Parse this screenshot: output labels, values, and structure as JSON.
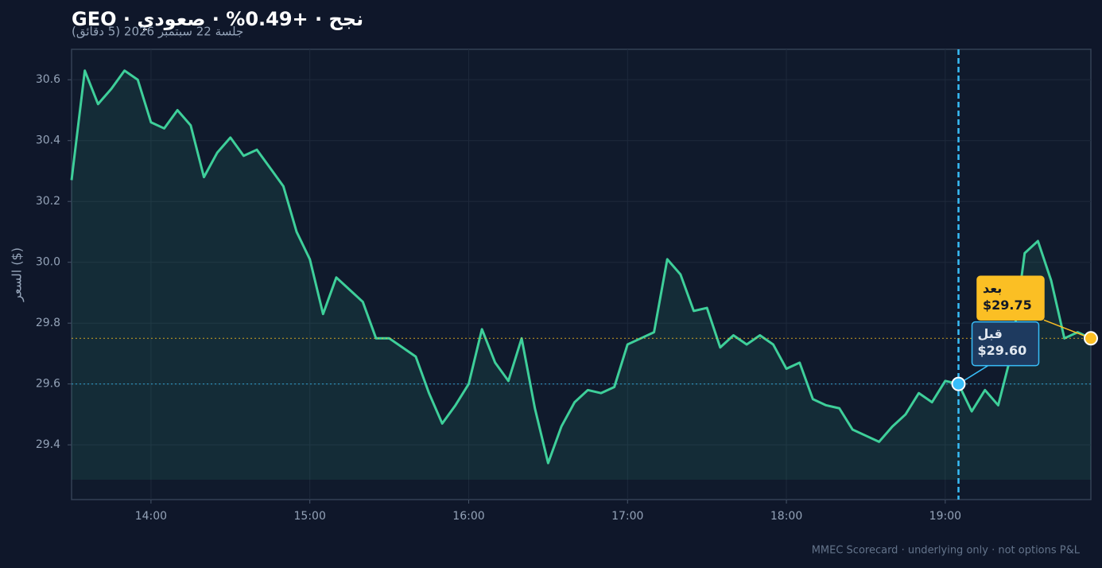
{
  "chart_data": {
    "type": "line",
    "title": "GEO · نجح · +0.49% · صعودي",
    "subtitle": "جلسة 22 سبتمبر 2026 (5 دقائق)",
    "y_label": "السعر ($)",
    "footer": "MMEC Scorecard · underlying only · not options P&L",
    "x": [
      810,
      815,
      820,
      825,
      830,
      835,
      840,
      845,
      850,
      855,
      860,
      865,
      870,
      875,
      880,
      885,
      890,
      895,
      900,
      905,
      910,
      915,
      920,
      925,
      930,
      935,
      940,
      945,
      950,
      955,
      960,
      965,
      970,
      975,
      980,
      985,
      990,
      995,
      1000,
      1005,
      1010,
      1015,
      1020,
      1025,
      1030,
      1035,
      1040,
      1045,
      1050,
      1055,
      1060,
      1065,
      1070,
      1075,
      1080,
      1085,
      1090,
      1095,
      1100,
      1105,
      1110,
      1115,
      1120,
      1125,
      1130,
      1135,
      1140,
      1145,
      1150,
      1155,
      1160,
      1165,
      1170,
      1175,
      1180,
      1185,
      1190,
      1195
    ],
    "series": [
      {
        "color": "#3ecf9a",
        "values": [
          30.27,
          30.63,
          30.52,
          30.57,
          30.63,
          30.6,
          30.46,
          30.44,
          30.5,
          30.45,
          30.28,
          30.36,
          30.41,
          30.35,
          30.37,
          30.31,
          30.25,
          30.1,
          30.01,
          29.83,
          29.95,
          29.91,
          29.87,
          29.75,
          29.75,
          29.72,
          29.69,
          29.57,
          29.47,
          29.53,
          29.6,
          29.78,
          29.67,
          29.61,
          29.75,
          29.52,
          29.34,
          29.46,
          29.54,
          29.58,
          29.57,
          29.59,
          29.73,
          29.75,
          29.77,
          30.01,
          29.96,
          29.84,
          29.85,
          29.72,
          29.76,
          29.73,
          29.76,
          29.73,
          29.65,
          29.67,
          29.55,
          29.53,
          29.52,
          29.45,
          29.43,
          29.41,
          29.46,
          29.5,
          29.57,
          29.54,
          29.61,
          29.6,
          29.51,
          29.58,
          29.53,
          29.7,
          30.03,
          30.07,
          29.94,
          29.75,
          29.77,
          29.75
        ]
      }
    ],
    "markers": [
      {
        "name": "قبل",
        "x": 1145,
        "value": 29.6,
        "label": "$29.60",
        "color": "#38bdf8"
      },
      {
        "name": "بعد",
        "x": 1195,
        "value": 29.75,
        "label": "$29.75",
        "color": "#fbbf24"
      }
    ],
    "xlim": [
      810,
      1195
    ],
    "xticks": [
      {
        "value": 840,
        "label": "14:00"
      },
      {
        "value": 900,
        "label": "15:00"
      },
      {
        "value": 960,
        "label": "16:00"
      },
      {
        "value": 1020,
        "label": "17:00"
      },
      {
        "value": 1080,
        "label": "18:00"
      },
      {
        "value": 1140,
        "label": "19:00"
      }
    ],
    "ylim": [
      29.22,
      30.7
    ],
    "yticks": [
      29.4,
      29.6,
      29.8,
      {
        "value": 30,
        "label": "30.0"
      },
      30.2,
      30.4,
      30.6
    ],
    "grid": true
  }
}
